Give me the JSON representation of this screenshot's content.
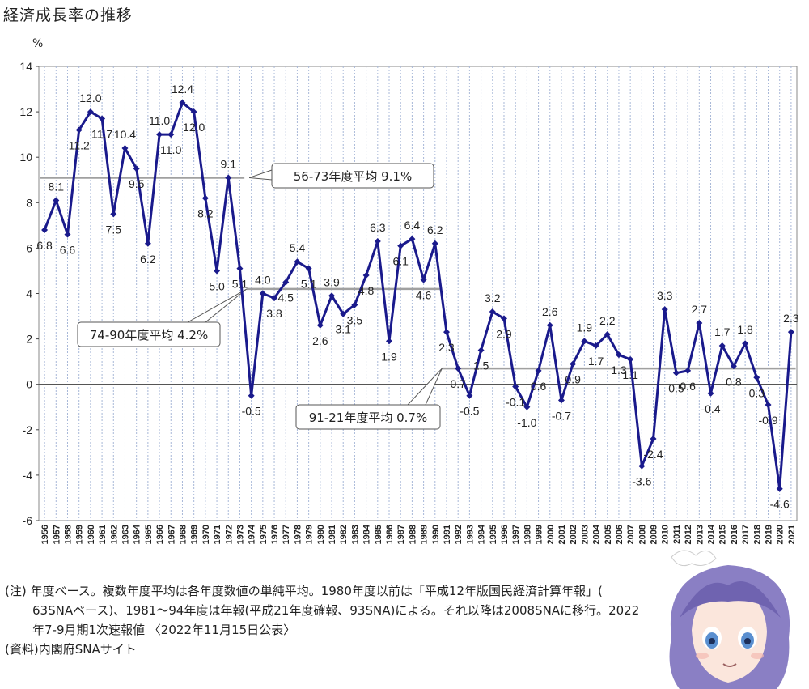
{
  "title": "経済成長率の推移",
  "chart_data": {
    "type": "line",
    "title": "経済成長率の推移",
    "ylabel": "%",
    "xlabel": "",
    "ylim": [
      -6,
      14
    ],
    "yticks": [
      -6,
      -4,
      -2,
      0,
      2,
      4,
      6,
      8,
      10,
      12,
      14
    ],
    "grid": true,
    "x": [
      "1956",
      "1957",
      "1958",
      "1959",
      "1960",
      "1961",
      "1962",
      "1963",
      "1964",
      "1965",
      "1966",
      "1967",
      "1968",
      "1969",
      "1970",
      "1971",
      "1972",
      "1973",
      "1974",
      "1975",
      "1976",
      "1977",
      "1978",
      "1979",
      "1980",
      "1981",
      "1982",
      "1983",
      "1984",
      "1985",
      "1986",
      "1987",
      "1988",
      "1989",
      "1990",
      "1991",
      "1992",
      "1993",
      "1994",
      "1995",
      "1996",
      "1997",
      "1998",
      "1999",
      "2000",
      "2001",
      "2002",
      "2003",
      "2004",
      "2005",
      "2006",
      "2007",
      "2008",
      "2009",
      "2010",
      "2011",
      "2012",
      "2013",
      "2014",
      "2015",
      "2016",
      "2017",
      "2018",
      "2019",
      "2020",
      "2021"
    ],
    "values": [
      6.8,
      8.1,
      6.6,
      11.2,
      12.0,
      11.7,
      7.5,
      10.4,
      9.5,
      6.2,
      11.0,
      11.0,
      12.4,
      12.0,
      8.2,
      5.0,
      9.1,
      5.1,
      -0.5,
      4.0,
      3.8,
      4.5,
      5.4,
      5.1,
      2.6,
      3.9,
      3.1,
      3.5,
      4.8,
      6.3,
      1.9,
      6.1,
      6.4,
      4.6,
      6.2,
      2.3,
      0.7,
      -0.5,
      1.5,
      3.2,
      2.9,
      -0.1,
      -1.0,
      0.6,
      2.6,
      -0.7,
      0.9,
      1.9,
      1.7,
      2.2,
      1.3,
      1.1,
      -3.6,
      -2.4,
      3.3,
      0.5,
      0.6,
      2.7,
      -0.4,
      1.7,
      0.8,
      1.8,
      0.3,
      -0.9,
      -4.6,
      2.3
    ],
    "data_labels": [
      "6.8",
      "8.1",
      "6.6",
      "11.2",
      "12.0",
      "11.7",
      "7.5",
      "10.4",
      "9.5",
      "6.2",
      "11.0",
      "11.0",
      "12.4",
      "12.0",
      "8.2",
      "5.0",
      "9.1",
      "5.1",
      "-0.5",
      "4.0",
      "3.8",
      "4.5",
      "5.4",
      "5.1",
      "2.6",
      "3.9",
      "3.1",
      "3.5",
      "4.8",
      "6.3",
      "1.9",
      "6.1",
      "6.4",
      "4.6",
      "6.2",
      "2.3",
      "0.7",
      "-0.5",
      "1.5",
      "3.2",
      "2.9",
      "-0.1",
      "-1.0",
      "0.6",
      "2.6",
      "-0.7",
      "0.9",
      "1.9",
      "1.7",
      "2.2",
      "1.3",
      "1.1",
      "-3.6",
      "-2.4",
      "3.3",
      "0.5",
      "0.6",
      "2.7",
      "-0.4",
      "1.7",
      "0.8",
      "1.8",
      "0.3",
      "-0.9",
      "-4.6",
      "2.3"
    ],
    "averages": [
      {
        "label": "56-73年度平均 9.1%",
        "value": 9.1,
        "from": "1956",
        "to": "1973"
      },
      {
        "label": "74-90年度平均 4.2%",
        "value": 4.2,
        "from": "1974",
        "to": "1990"
      },
      {
        "label": "91-21年度平均 0.7%",
        "value": 0.7,
        "from": "1991",
        "to": "2021"
      }
    ],
    "colors": {
      "line": "#1a1a8c",
      "marker": "#1a1a8c",
      "average": "#a0a0a0",
      "grid": "#a8b8d8",
      "zero": "#555555"
    }
  },
  "notes": {
    "line1": "(注) 年度ベース。複数年度平均は各年度数値の単純平均。1980年度以前は「平成12年版国民経済計算年報」(",
    "line2": "63SNAベース)、1981～94年度は年報(平成21年度確報、93SNA)による。それ以降は2008SNAに移行。2022",
    "line3": "年7-9月期1次速報値 〈2022年11月15日公表〉",
    "line4": "(資料)内閣府SNAサイト"
  }
}
